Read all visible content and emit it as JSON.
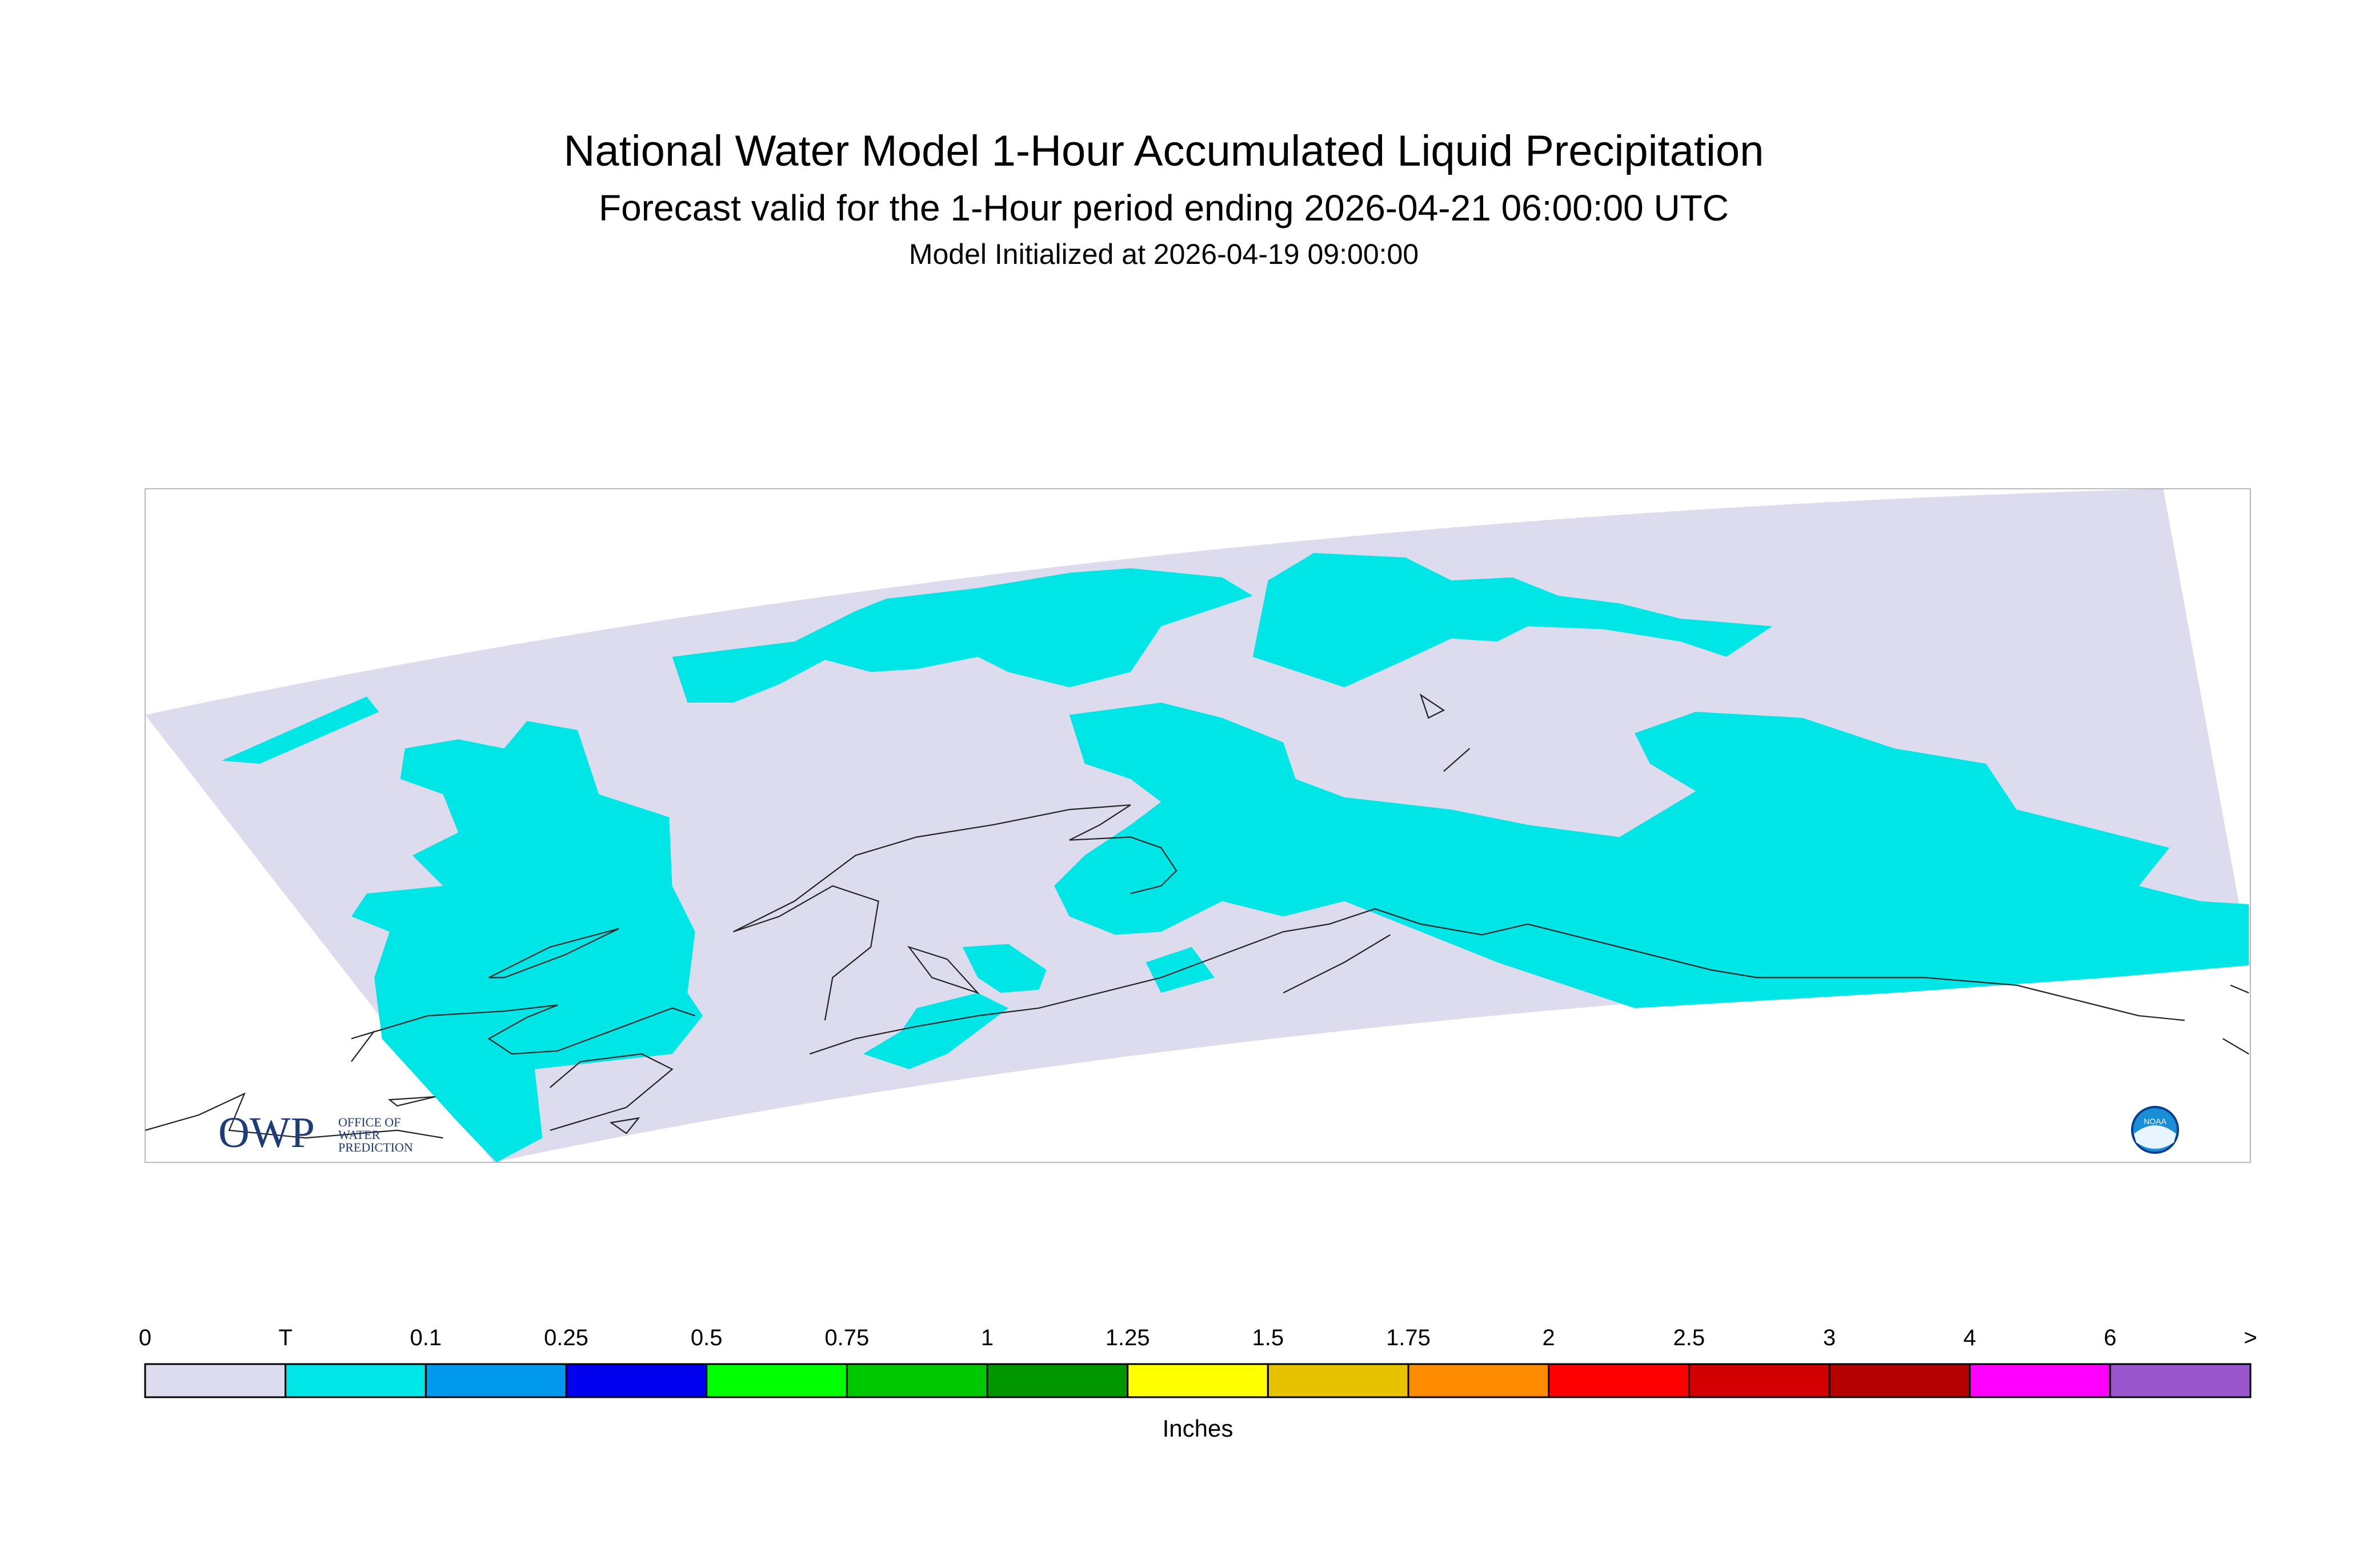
{
  "header": {
    "title": "National Water Model 1-Hour Accumulated Liquid Precipitation",
    "subtitle": "Forecast valid for the 1-Hour period ending 2026-04-21 06:00:00 UTC",
    "initialized": "Model Initialized at 2026-04-19 09:00:00"
  },
  "logos": {
    "owp": "OWP",
    "owp_lines": [
      "OFFICE OF",
      "WATER",
      "PREDICTION"
    ],
    "noaa": "NOAA"
  },
  "legend": {
    "labels": [
      "0",
      "T",
      "0.1",
      "0.25",
      "0.5",
      "0.75",
      "1",
      "1.25",
      "1.5",
      "1.75",
      "2",
      "2.5",
      "3",
      "4",
      "6",
      ">"
    ],
    "colors": [
      "#dcdcee",
      "#00e5e5",
      "#0099ee",
      "#0000ee",
      "#00ff00",
      "#00c800",
      "#009600",
      "#ffff00",
      "#e6c200",
      "#ff8c00",
      "#ff0000",
      "#d20000",
      "#b40000",
      "#ff00ff",
      "#9955cc"
    ],
    "units": "Inches"
  }
}
